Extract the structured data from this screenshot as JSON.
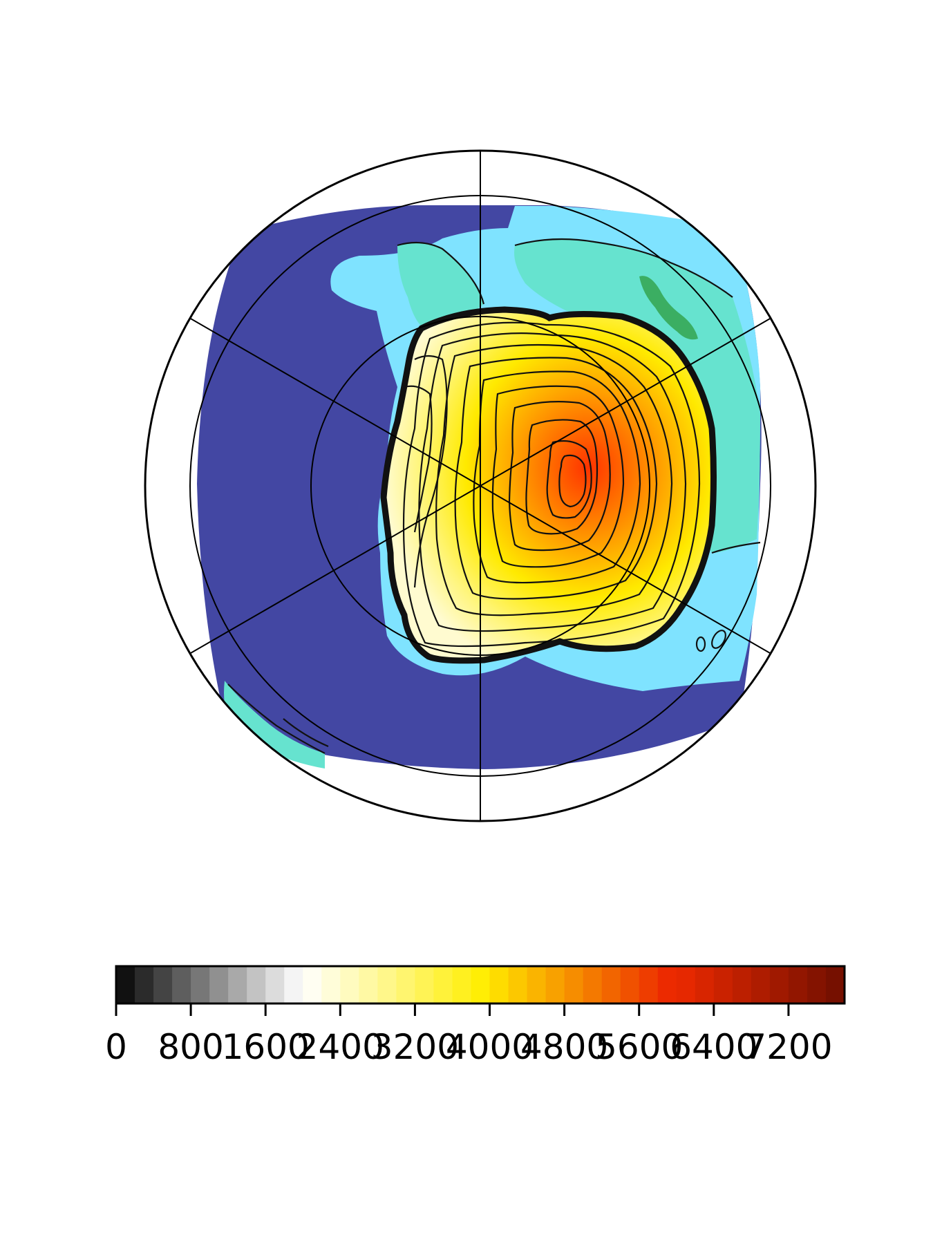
{
  "chart_data": {
    "type": "heatmap",
    "projection": "south-polar-stereographic",
    "title": "",
    "map": {
      "latitude_circles_deg": [
        -80,
        -70,
        -60
      ],
      "meridians_deg": [
        0,
        60,
        120,
        180,
        240,
        300
      ],
      "filled_regions": [
        {
          "name": "open-ocean-deep",
          "color": "#4347a3"
        },
        {
          "name": "shelf-sea",
          "color": "#7fe3ff"
        },
        {
          "name": "ice-shelf",
          "color": "#66e3cf"
        },
        {
          "name": "grounded-margin",
          "color": "#3bae62"
        }
      ],
      "ice_sheet_maximum_approx": 5400,
      "contour_levels": [
        250,
        500,
        1000,
        1500,
        2000,
        2500,
        3000,
        3500,
        4000,
        4500,
        5000
      ]
    },
    "colorbar": {
      "orientation": "horizontal",
      "range": [
        0,
        7800
      ],
      "step": 200,
      "tick_values": [
        0,
        800,
        1600,
        2400,
        3200,
        4000,
        4800,
        5600,
        6400,
        7200
      ],
      "tick_labels": [
        "0",
        "800",
        "1600",
        "2400",
        "3200",
        "4000",
        "4800",
        "5600",
        "6400",
        "7200"
      ],
      "colors": [
        "#111111",
        "#2b2b2b",
        "#444444",
        "#5e5e5e",
        "#777777",
        "#909090",
        "#a9a9a9",
        "#c3c3c3",
        "#dcdcdc",
        "#f4f4f4",
        "#fffef2",
        "#fffdd9",
        "#fffbbf",
        "#fff9a4",
        "#fff78a",
        "#fff56f",
        "#fff355",
        "#fff23a",
        "#fff020",
        "#ffee05",
        "#fedc00",
        "#fcc800",
        "#fab400",
        "#f8a100",
        "#f68d00",
        "#f47900",
        "#f26500",
        "#f05100",
        "#ee3d00",
        "#ec2a00",
        "#e62800",
        "#d82500",
        "#ca2200",
        "#bc1f00",
        "#ae1c00",
        "#a01900",
        "#921600",
        "#841300",
        "#761000"
      ]
    }
  }
}
